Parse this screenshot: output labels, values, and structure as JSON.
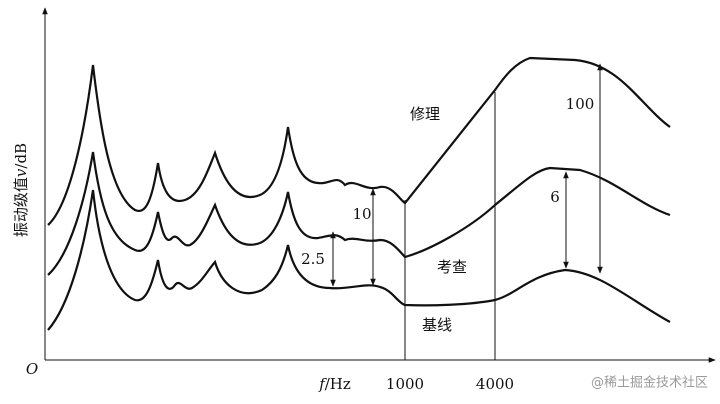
{
  "axes": {
    "y_label_text": "振动级值",
    "y_label_var": "v",
    "y_label_unit": "/dB",
    "origin": "O",
    "x_label_var": "f",
    "x_label_unit": "/Hz",
    "x_marks": [
      "1000",
      "4000"
    ]
  },
  "curves": [
    {
      "label": "修理"
    },
    {
      "label": "考查"
    },
    {
      "label": "基线"
    }
  ],
  "annotations": [
    "10",
    "2.5",
    "6",
    "100"
  ],
  "watermark": "@稀土掘金技术社区"
}
